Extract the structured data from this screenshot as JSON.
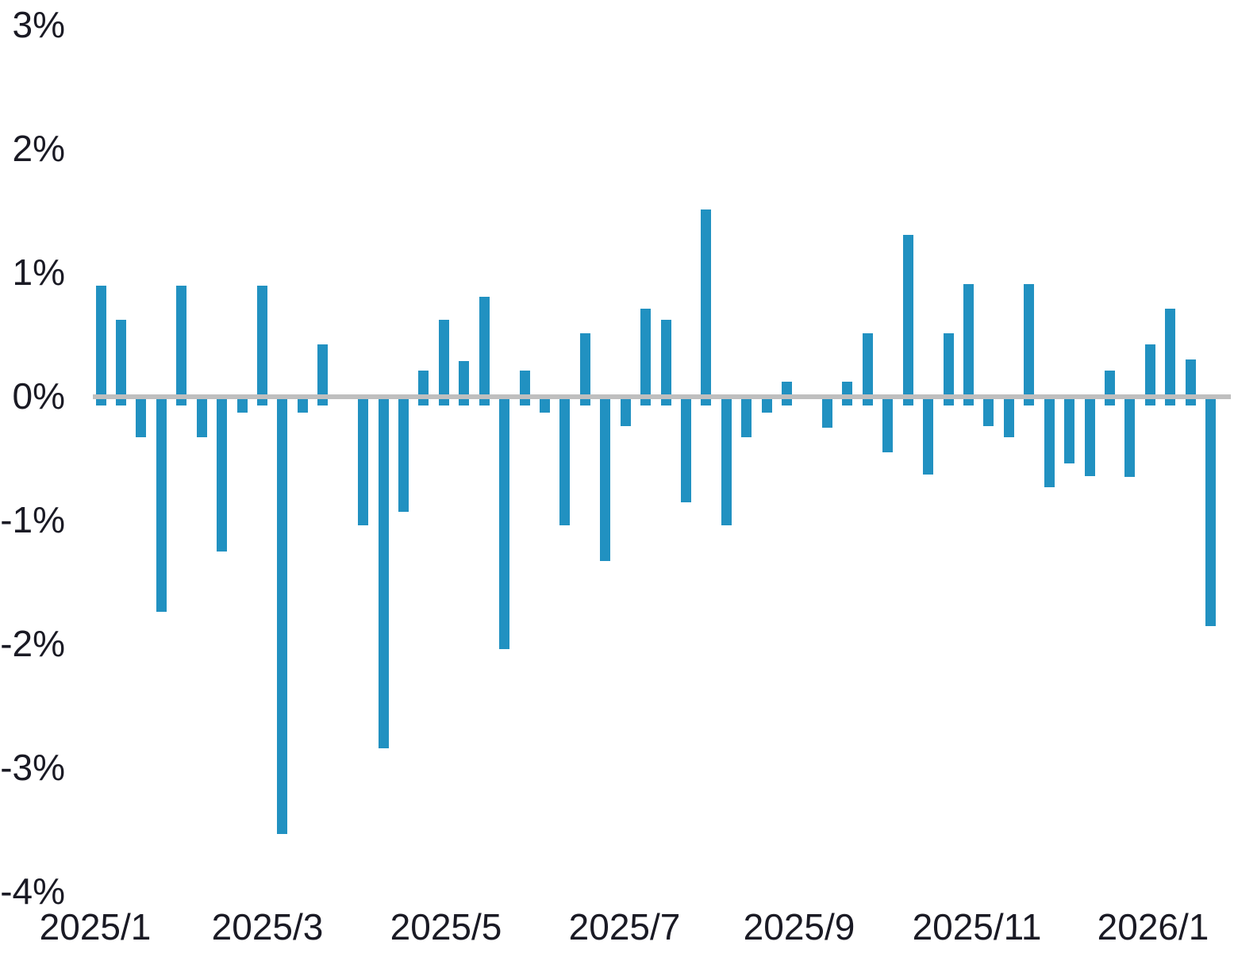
{
  "chart_data": {
    "type": "bar",
    "title": "",
    "xlabel": "",
    "ylabel": "",
    "unit": "%",
    "ylim": [
      -4,
      3
    ],
    "grid": false,
    "legend": null,
    "y_tick_labels": [
      "3%",
      "2%",
      "1%",
      "0%",
      "-1%",
      "-2%",
      "-3%",
      "-4%"
    ],
    "y_tick_values": [
      3,
      2,
      1,
      0,
      -1,
      -2,
      -3,
      -4
    ],
    "x_tick_labels": [
      "2025/1",
      "2025/3",
      "2025/5",
      "2025/7",
      "2025/9",
      "2025/11",
      "2026/1"
    ],
    "x_axis_note": "weekly bars from 2025/1 through 2026/1; null = no bar drawn at that slot",
    "values": [
      0.9,
      0.62,
      -0.33,
      -1.74,
      0.9,
      -0.33,
      -1.25,
      -0.13,
      0.9,
      -3.53,
      -0.13,
      0.42,
      null,
      -1.04,
      -2.84,
      -0.93,
      0.21,
      0.62,
      0.29,
      0.81,
      -2.04,
      0.21,
      -0.13,
      -1.04,
      0.51,
      -1.33,
      -0.24,
      0.71,
      0.62,
      -0.85,
      1.51,
      -1.04,
      -0.33,
      -0.13,
      0.12,
      null,
      -0.25,
      0.12,
      0.51,
      -0.45,
      1.31,
      -0.63,
      0.51,
      0.91,
      -0.24,
      -0.33,
      0.91,
      -0.73,
      -0.54,
      -0.64,
      0.21,
      -0.65,
      0.42,
      0.71,
      0.3,
      -1.85
    ],
    "colors": {
      "bar": "#2191c1",
      "zero_line": "#bfbfbf",
      "zero_dash": "#2191c1",
      "tick_text": "#1a1a24",
      "background": "#ffffff"
    },
    "style_notes": "solid gray line at 0%; short blue dash just below the zero line at every slot that has a data point"
  }
}
